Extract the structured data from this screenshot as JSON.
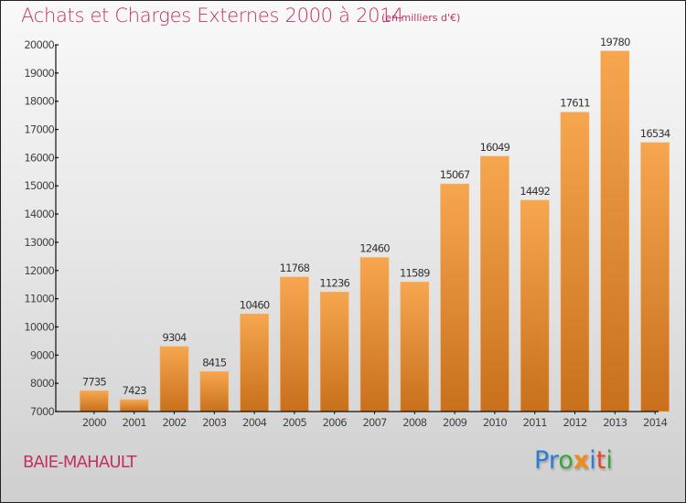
{
  "header": {
    "title": "Achats et Charges Externes 2000 à 2014",
    "subtitle": "(en milliers d'€)"
  },
  "footer": {
    "city": "BAIE-MAHAULT",
    "logo_letters": [
      {
        "ch": "P",
        "color": "#2a7fd4"
      },
      {
        "ch": "r",
        "color": "#2a7fd4"
      },
      {
        "ch": "o",
        "color": "#3aa63a"
      },
      {
        "ch": "x",
        "color": "#f08a1c"
      },
      {
        "ch": "i",
        "color": "#2a7fd4"
      },
      {
        "ch": "t",
        "color": "#e8442a"
      },
      {
        "ch": "i",
        "color": "#3aa63a"
      }
    ]
  },
  "colors": {
    "accent": "#c2325f",
    "bar_top": "#f7a650",
    "bar_bottom": "#c8701c"
  },
  "chart_data": {
    "type": "bar",
    "title": "Achats et Charges Externes 2000 à 2014",
    "subtitle": "(en milliers d'€)",
    "xlabel": "",
    "ylabel": "",
    "categories": [
      "2000",
      "2001",
      "2002",
      "2003",
      "2004",
      "2005",
      "2006",
      "2007",
      "2008",
      "2009",
      "2010",
      "2011",
      "2012",
      "2013",
      "2014"
    ],
    "values": [
      7735,
      7423,
      9304,
      8415,
      10460,
      11768,
      11236,
      12460,
      11589,
      15067,
      16049,
      14492,
      17611,
      19780,
      16534
    ],
    "ylim": [
      7000,
      20000
    ],
    "yticks": [
      7000,
      8000,
      9000,
      10000,
      11000,
      12000,
      13000,
      14000,
      15000,
      16000,
      17000,
      18000,
      19000,
      20000
    ],
    "grid": false,
    "legend": "none"
  }
}
